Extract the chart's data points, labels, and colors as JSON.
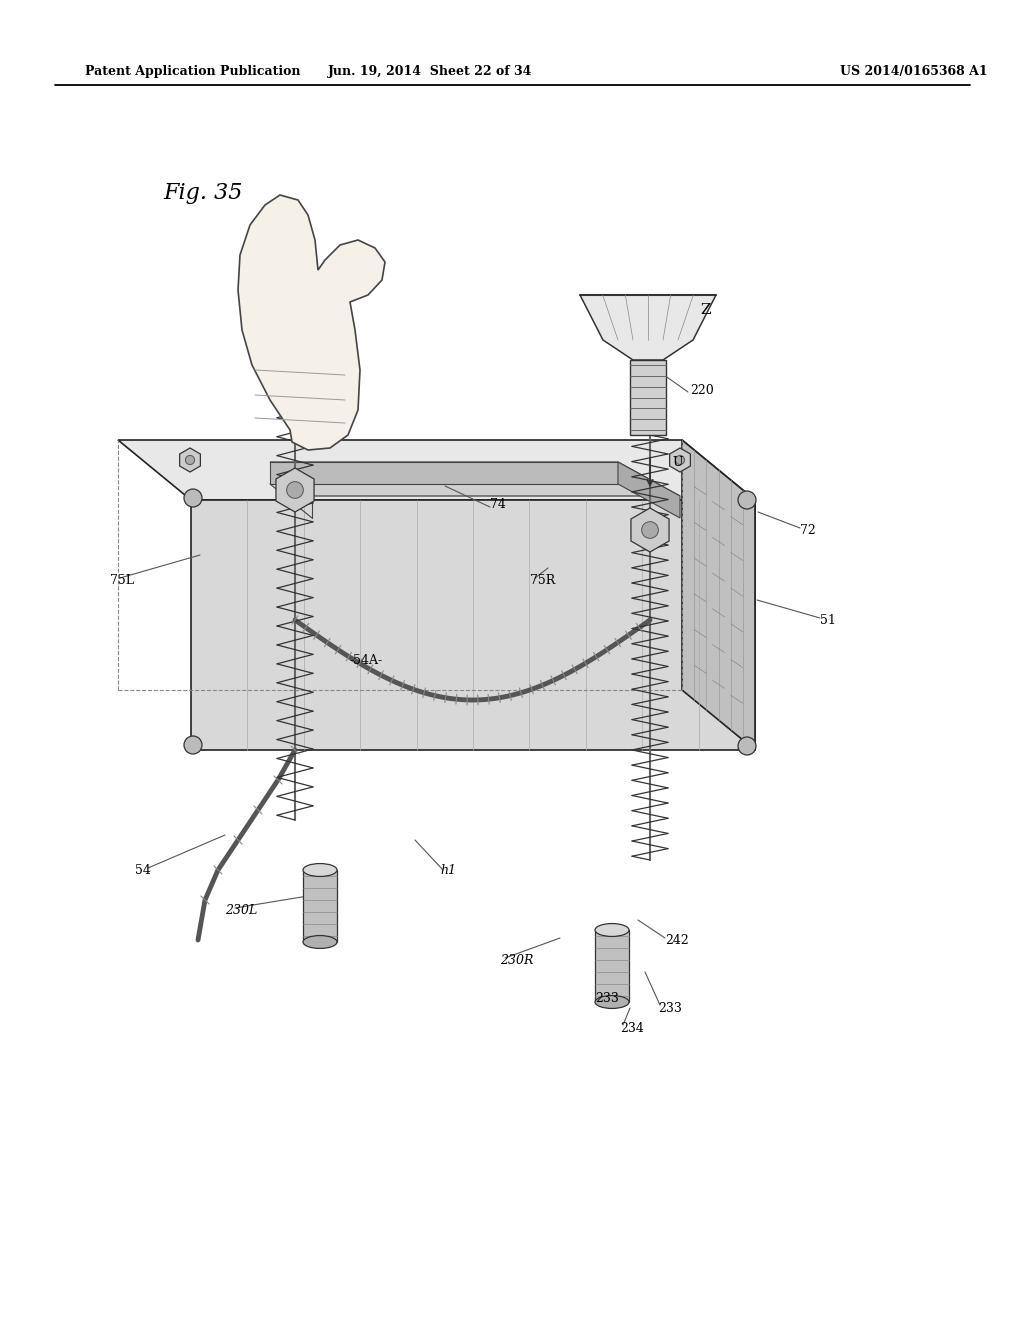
{
  "page_width": 10.24,
  "page_height": 13.2,
  "dpi": 100,
  "bg": "#ffffff",
  "header_left": "Patent Application Publication",
  "header_mid": "Jun. 19, 2014  Sheet 22 of 34",
  "header_right": "US 2014/0165368 A1",
  "fig_label": "Fig. 35",
  "line_color": "#111111"
}
